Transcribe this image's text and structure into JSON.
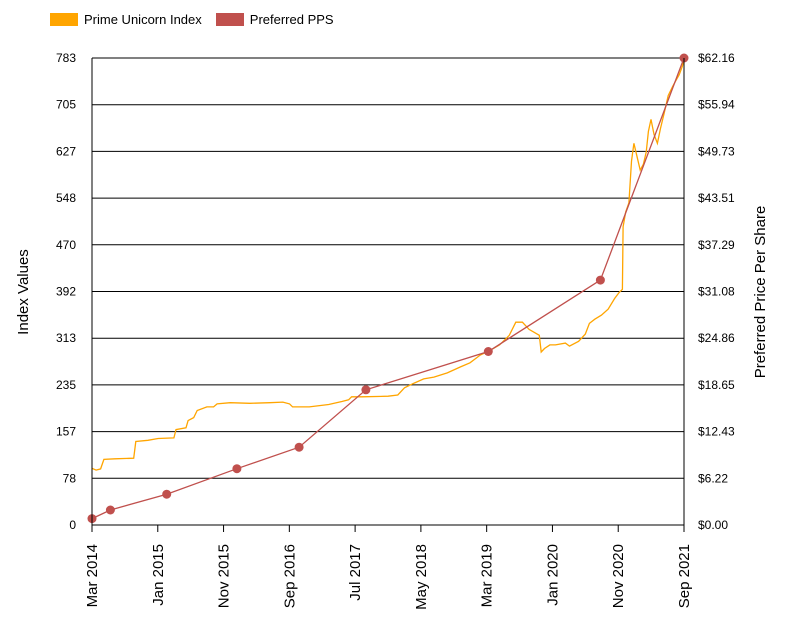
{
  "chart_data": {
    "type": "line",
    "legend": [
      "Prime Unicorn Index",
      "Preferred PPS"
    ],
    "legend_position": "top-left",
    "grid": true,
    "colors": {
      "index": "#FFA500",
      "pps": "#C0504D"
    },
    "ylabel_left": "Index Values",
    "ylabel_right": "Preferred Price Per Share",
    "ylim_left": [
      0,
      783
    ],
    "ylim_right": [
      0,
      62.16
    ],
    "yticks_left": [
      "0",
      "78",
      "157",
      "235",
      "313",
      "392",
      "470",
      "548",
      "627",
      "705",
      "783"
    ],
    "yticks_right": [
      "$0.00",
      "$6.22",
      "$12.43",
      "$18.65",
      "$24.86",
      "$31.08",
      "$37.29",
      "$43.51",
      "$49.73",
      "$55.94",
      "$62.16"
    ],
    "x_start": "2014-03-01",
    "x_end": "2021-09-01",
    "xticks": [
      "Mar 2014",
      "Jan 2015",
      "Nov 2015",
      "Sep 2016",
      "Jul 2017",
      "May 2018",
      "Mar 2019",
      "Jan 2020",
      "Nov 2020",
      "Sep 2021"
    ],
    "series": [
      {
        "name": "Prime Unicorn Index",
        "axis": "left",
        "points": [
          [
            "2014-03-01",
            95
          ],
          [
            "2014-03-20",
            92
          ],
          [
            "2014-04-10",
            94
          ],
          [
            "2014-04-25",
            110
          ],
          [
            "2014-06-15",
            111
          ],
          [
            "2014-09-10",
            112
          ],
          [
            "2014-09-20",
            140
          ],
          [
            "2014-11-15",
            142
          ],
          [
            "2015-01-01",
            145
          ],
          [
            "2015-03-15",
            146
          ],
          [
            "2015-03-25",
            160
          ],
          [
            "2015-05-10",
            163
          ],
          [
            "2015-05-20",
            175
          ],
          [
            "2015-06-15",
            180
          ],
          [
            "2015-07-01",
            192
          ],
          [
            "2015-08-15",
            198
          ],
          [
            "2015-09-15",
            198
          ],
          [
            "2015-10-01",
            203
          ],
          [
            "2015-12-01",
            205
          ],
          [
            "2016-03-01",
            204
          ],
          [
            "2016-06-01",
            205
          ],
          [
            "2016-08-01",
            206
          ],
          [
            "2016-09-01",
            203
          ],
          [
            "2016-09-15",
            198
          ],
          [
            "2016-12-01",
            198
          ],
          [
            "2017-03-01",
            202
          ],
          [
            "2017-05-01",
            207
          ],
          [
            "2017-06-01",
            210
          ],
          [
            "2017-06-15",
            215
          ],
          [
            "2017-08-01",
            215
          ],
          [
            "2017-12-01",
            216
          ],
          [
            "2018-01-15",
            218
          ],
          [
            "2018-02-15",
            230
          ],
          [
            "2018-04-01",
            238
          ],
          [
            "2018-05-15",
            245
          ],
          [
            "2018-07-01",
            248
          ],
          [
            "2018-09-01",
            255
          ],
          [
            "2018-11-01",
            265
          ],
          [
            "2018-12-15",
            272
          ],
          [
            "2019-02-01",
            285
          ],
          [
            "2019-03-15",
            292
          ],
          [
            "2019-05-01",
            302
          ],
          [
            "2019-06-15",
            318
          ],
          [
            "2019-07-15",
            340
          ],
          [
            "2019-08-15",
            340
          ],
          [
            "2019-09-15",
            328
          ],
          [
            "2019-11-01",
            318
          ],
          [
            "2019-11-10",
            290
          ],
          [
            "2019-11-25",
            296
          ],
          [
            "2019-12-20",
            302
          ],
          [
            "2020-01-15",
            302
          ],
          [
            "2020-03-01",
            305
          ],
          [
            "2020-03-20",
            300
          ],
          [
            "2020-05-01",
            308
          ],
          [
            "2020-06-01",
            320
          ],
          [
            "2020-06-20",
            338
          ],
          [
            "2020-07-15",
            345
          ],
          [
            "2020-08-15",
            352
          ],
          [
            "2020-09-15",
            362
          ],
          [
            "2020-10-15",
            380
          ],
          [
            "2020-11-05",
            390
          ],
          [
            "2020-11-20",
            395
          ],
          [
            "2020-11-23",
            500
          ],
          [
            "2020-12-05",
            525
          ],
          [
            "2020-12-20",
            540
          ],
          [
            "2021-01-01",
            610
          ],
          [
            "2021-01-12",
            640
          ],
          [
            "2021-01-25",
            620
          ],
          [
            "2021-02-10",
            595
          ],
          [
            "2021-02-25",
            605
          ],
          [
            "2021-03-10",
            625
          ],
          [
            "2021-03-20",
            660
          ],
          [
            "2021-04-01",
            680
          ],
          [
            "2021-04-15",
            655
          ],
          [
            "2021-05-01",
            640
          ],
          [
            "2021-05-15",
            665
          ],
          [
            "2021-06-01",
            690
          ],
          [
            "2021-06-20",
            720
          ],
          [
            "2021-07-10",
            735
          ],
          [
            "2021-07-25",
            745
          ],
          [
            "2021-08-10",
            755
          ],
          [
            "2021-08-25",
            770
          ],
          [
            "2021-09-01",
            783
          ]
        ]
      },
      {
        "name": "Preferred PPS",
        "axis": "right",
        "points": [
          [
            "2014-03-01",
            0.85
          ],
          [
            "2014-05-25",
            2.0
          ],
          [
            "2015-02-10",
            4.1
          ],
          [
            "2016-01-01",
            7.5
          ],
          [
            "2016-10-15",
            10.35
          ],
          [
            "2017-08-20",
            18.0
          ],
          [
            "2019-03-10",
            23.1
          ],
          [
            "2020-08-10",
            32.6
          ],
          [
            "2021-09-01",
            62.16
          ]
        ]
      }
    ]
  }
}
